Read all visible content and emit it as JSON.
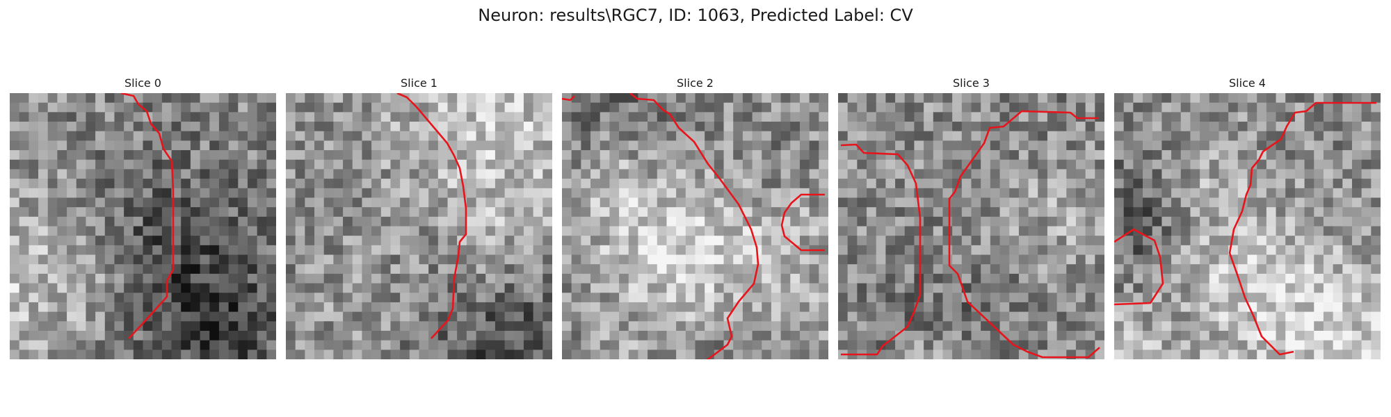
{
  "figure": {
    "suptitle": "Neuron: results\\RGC7, ID: 1063, Predicted Label: CV"
  },
  "colors": {
    "contour": "#e8141b",
    "background": "#ffffff"
  },
  "panels": [
    {
      "title": "Slice 0"
    },
    {
      "title": "Slice 1"
    },
    {
      "title": "Slice 2"
    },
    {
      "title": "Slice 3"
    },
    {
      "title": "Slice 4"
    }
  ]
}
